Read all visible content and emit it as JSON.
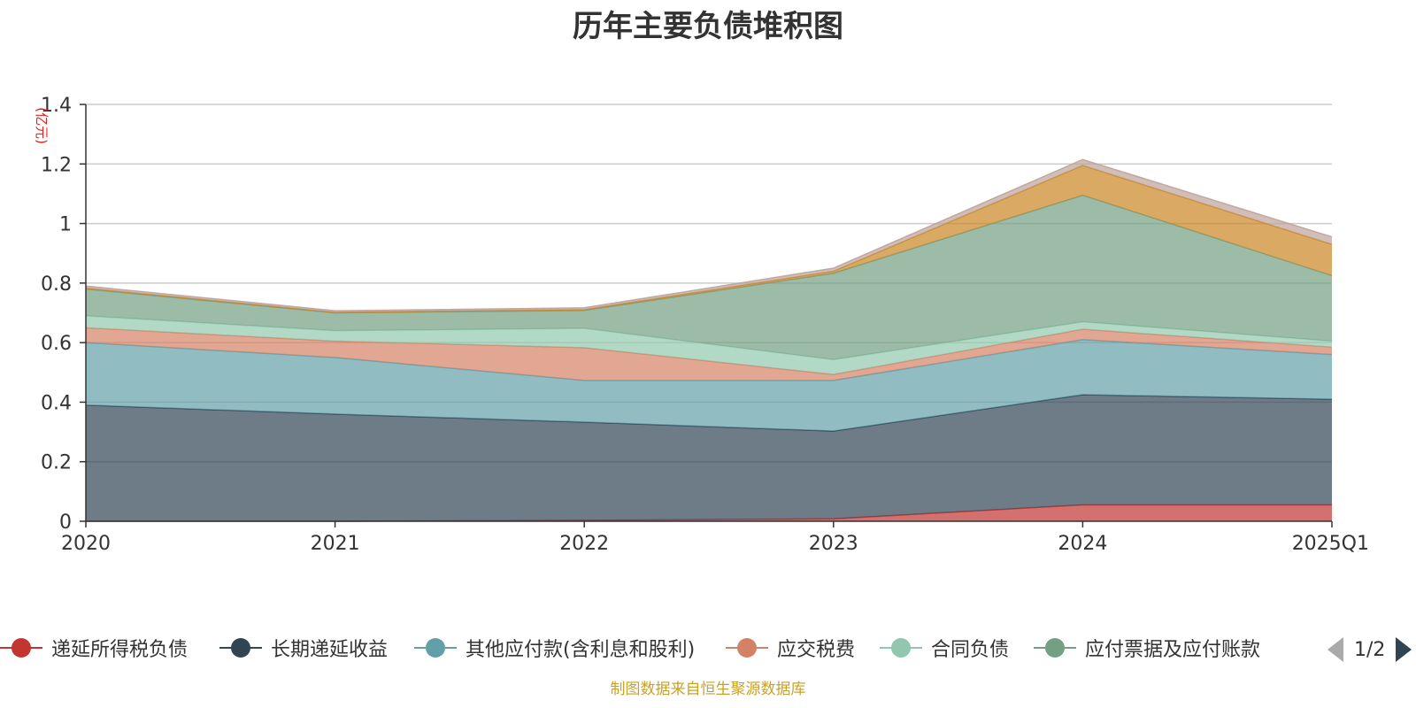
{
  "chart_data": {
    "type": "area",
    "stacked": true,
    "title": "历年主要负债堆积图",
    "unit_label": "(亿元)",
    "categories": [
      "2020",
      "2021",
      "2022",
      "2023",
      "2024",
      "2025Q1"
    ],
    "y_ticks": [
      "0",
      "0.2",
      "0.4",
      "0.6",
      "0.8",
      "1",
      "1.2",
      "1.4"
    ],
    "ylim": [
      0,
      1.4
    ],
    "grid": true,
    "legend_position": "bottom",
    "series": [
      {
        "name": "递延所得税负债",
        "color": "#c23531",
        "values": [
          0.0,
          0.0,
          0.003,
          0.008,
          0.055,
          0.055
        ]
      },
      {
        "name": "长期递延收益",
        "color": "#2f4554",
        "values": [
          0.39,
          0.36,
          0.33,
          0.295,
          0.37,
          0.355
        ]
      },
      {
        "name": "其他应付款(含利息和股利)",
        "color": "#61a0a8",
        "values": [
          0.21,
          0.19,
          0.14,
          0.17,
          0.185,
          0.15
        ]
      },
      {
        "name": "应交税费",
        "color": "#d48265",
        "values": [
          0.05,
          0.055,
          0.11,
          0.02,
          0.035,
          0.025
        ]
      },
      {
        "name": "合同负债",
        "color": "#91c7ae",
        "values": [
          0.04,
          0.035,
          0.065,
          0.05,
          0.025,
          0.02
        ]
      },
      {
        "name": "应付票据及应付账款",
        "color": "#749f83",
        "values": [
          0.09,
          0.06,
          0.06,
          0.29,
          0.425,
          0.22
        ]
      },
      {
        "name": "",
        "color": "#ca8622",
        "values": [
          0.003,
          0.002,
          0.003,
          0.007,
          0.1,
          0.105
        ]
      },
      {
        "name": "",
        "color": "#bda29a",
        "values": [
          0.007,
          0.005,
          0.006,
          0.01,
          0.02,
          0.025
        ]
      }
    ]
  },
  "legend": {
    "items": [
      {
        "label": "递延所得税负债",
        "color": "#c23531"
      },
      {
        "label": "长期递延收益",
        "color": "#2f4554"
      },
      {
        "label": "其他应付款(含利息和股利)",
        "color": "#61a0a8"
      },
      {
        "label": "应交税费",
        "color": "#d48265"
      },
      {
        "label": "合同负债",
        "color": "#91c7ae"
      },
      {
        "label": "应付票据及应付账款",
        "color": "#749f83"
      }
    ],
    "page_indicator": "1/2"
  },
  "footer": {
    "source": "制图数据来自恒生聚源数据库"
  }
}
